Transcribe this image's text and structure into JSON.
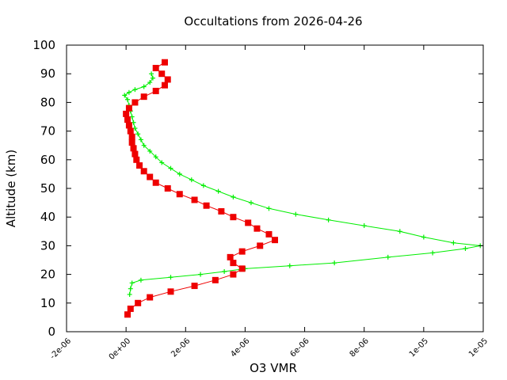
{
  "chart_data": {
    "type": "scatter",
    "title": "Occultations from 2026-04-26",
    "xlabel": "O3 VMR",
    "ylabel": "Altitude (km)",
    "xlim": [
      -2e-06,
      1.2e-05
    ],
    "ylim": [
      0,
      100
    ],
    "x_ticks": [
      {
        "value": -2e-06,
        "label": "-2e-06"
      },
      {
        "value": 0,
        "label": "0e+00"
      },
      {
        "value": 2e-06,
        "label": "2e-06"
      },
      {
        "value": 4e-06,
        "label": "4e-06"
      },
      {
        "value": 6e-06,
        "label": "6e-06"
      },
      {
        "value": 8e-06,
        "label": "8e-06"
      },
      {
        "value": 1e-05,
        "label": "1e-05"
      },
      {
        "value": 1.2e-05,
        "label": "1e-05"
      }
    ],
    "y_ticks": [
      0,
      10,
      20,
      30,
      40,
      50,
      60,
      70,
      80,
      90,
      100
    ],
    "grid": false,
    "series": [
      {
        "marker": "plus",
        "color": "#00ee00",
        "points": [
          [
            1.2e-07,
            13
          ],
          [
            1.5e-07,
            15
          ],
          [
            2e-07,
            17
          ],
          [
            5e-07,
            18
          ],
          [
            1.5e-06,
            19
          ],
          [
            2.5e-06,
            20
          ],
          [
            3.3e-06,
            21
          ],
          [
            4e-06,
            22
          ],
          [
            5.5e-06,
            23
          ],
          [
            7e-06,
            24
          ],
          [
            8.8e-06,
            26
          ],
          [
            1.03e-05,
            27.5
          ],
          [
            1.14e-05,
            29
          ],
          [
            1.19e-05,
            30
          ],
          [
            1.1e-05,
            31
          ],
          [
            1e-05,
            33
          ],
          [
            9.2e-06,
            35
          ],
          [
            8e-06,
            37
          ],
          [
            6.8e-06,
            39
          ],
          [
            5.7e-06,
            41
          ],
          [
            4.8e-06,
            43
          ],
          [
            4.2e-06,
            45
          ],
          [
            3.6e-06,
            47
          ],
          [
            3.1e-06,
            49
          ],
          [
            2.6e-06,
            51
          ],
          [
            2.2e-06,
            53
          ],
          [
            1.8e-06,
            55
          ],
          [
            1.5e-06,
            57
          ],
          [
            1.2e-06,
            59
          ],
          [
            1e-06,
            61
          ],
          [
            8e-07,
            63
          ],
          [
            6e-07,
            65
          ],
          [
            5e-07,
            67
          ],
          [
            4e-07,
            69
          ],
          [
            3e-07,
            71
          ],
          [
            2.5e-07,
            73
          ],
          [
            2e-07,
            75
          ],
          [
            1.5e-07,
            77
          ],
          [
            1e-07,
            79
          ],
          [
            5e-08,
            81
          ],
          [
            -5e-08,
            82.5
          ],
          [
            1e-07,
            83.5
          ],
          [
            3e-07,
            84.5
          ],
          [
            6e-07,
            85.5
          ],
          [
            8e-07,
            87
          ],
          [
            9e-07,
            88.5
          ],
          [
            8.5e-07,
            90
          ]
        ]
      },
      {
        "marker": "square",
        "color": "#ee0000",
        "points": [
          [
            5e-08,
            6
          ],
          [
            1.5e-07,
            8
          ],
          [
            4e-07,
            10
          ],
          [
            8e-07,
            12
          ],
          [
            1.5e-06,
            14
          ],
          [
            2.3e-06,
            16
          ],
          [
            3e-06,
            18
          ],
          [
            3.6e-06,
            20
          ],
          [
            3.9e-06,
            22
          ],
          [
            3.6e-06,
            24
          ],
          [
            3.5e-06,
            26
          ],
          [
            3.9e-06,
            28
          ],
          [
            4.5e-06,
            30
          ],
          [
            5e-06,
            32
          ],
          [
            4.8e-06,
            34
          ],
          [
            4.4e-06,
            36
          ],
          [
            4.1e-06,
            38
          ],
          [
            3.6e-06,
            40
          ],
          [
            3.2e-06,
            42
          ],
          [
            2.7e-06,
            44
          ],
          [
            2.3e-06,
            46
          ],
          [
            1.8e-06,
            48
          ],
          [
            1.4e-06,
            50
          ],
          [
            1e-06,
            52
          ],
          [
            8e-07,
            54
          ],
          [
            6e-07,
            56
          ],
          [
            4.5e-07,
            58
          ],
          [
            3.5e-07,
            60
          ],
          [
            3e-07,
            62
          ],
          [
            2.5e-07,
            64
          ],
          [
            2e-07,
            66
          ],
          [
            2e-07,
            68
          ],
          [
            1.5e-07,
            70
          ],
          [
            1e-07,
            72
          ],
          [
            5e-08,
            74
          ],
          [
            0.0,
            76
          ],
          [
            1e-07,
            78
          ],
          [
            3e-07,
            80
          ],
          [
            6e-07,
            82
          ],
          [
            1e-06,
            84
          ],
          [
            1.3e-06,
            86
          ],
          [
            1.4e-06,
            88
          ],
          [
            1.2e-06,
            90
          ],
          [
            1e-06,
            92
          ],
          [
            1.3e-06,
            94
          ]
        ]
      }
    ]
  }
}
